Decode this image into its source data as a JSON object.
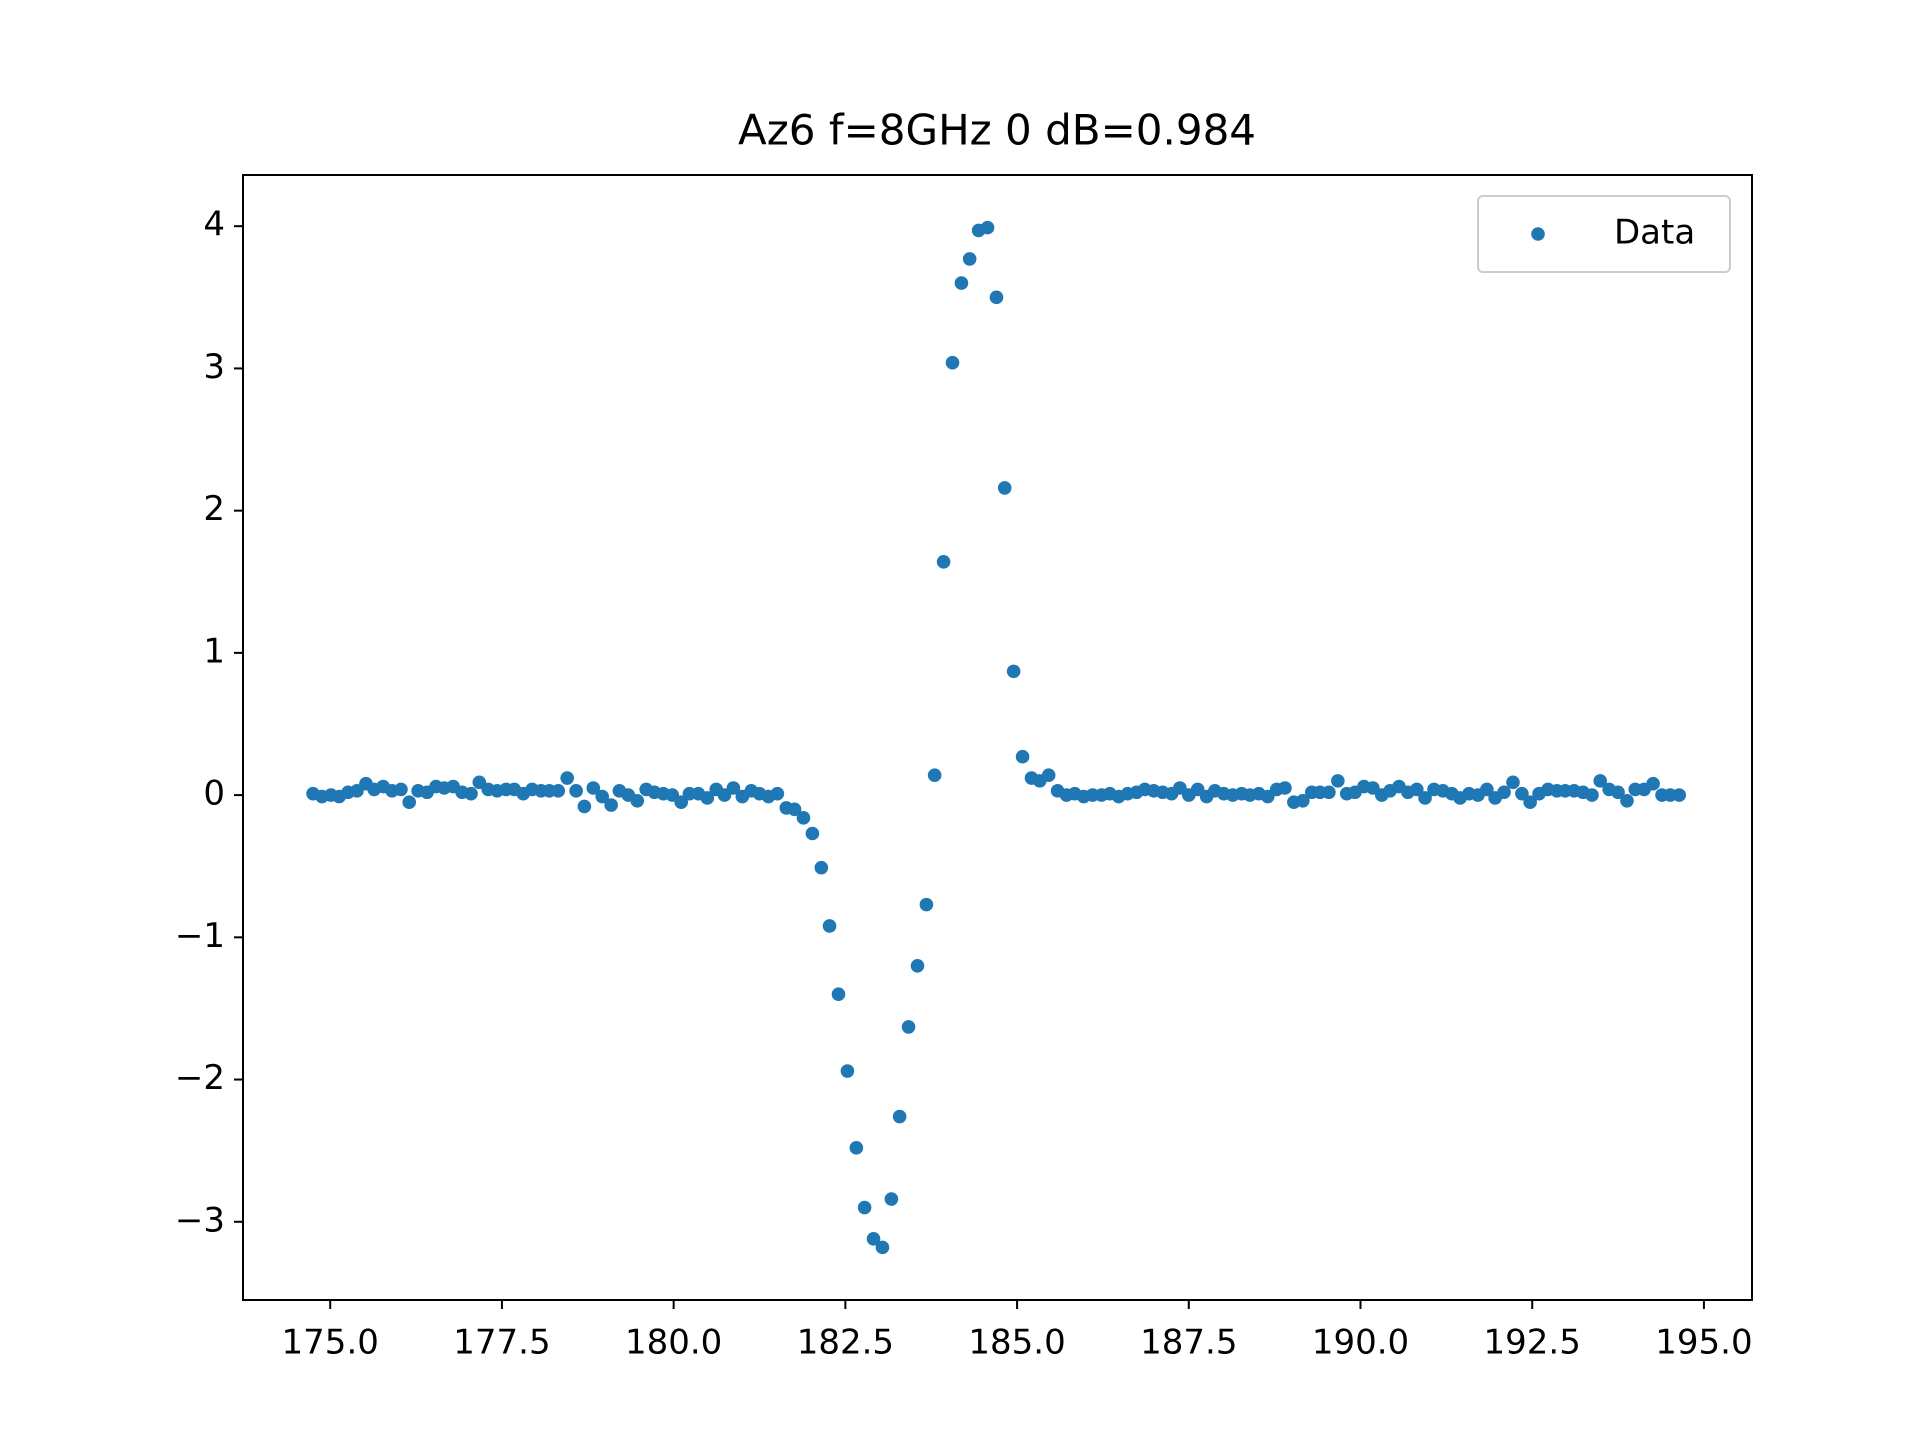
{
  "chart_data": {
    "type": "scatter",
    "title": "Az6 f=8GHz 0 dB=0.984",
    "series": [
      {
        "name": "Data",
        "color": "#1f77b4",
        "x": [
          174.75,
          174.88,
          175.01,
          175.13,
          175.26,
          175.39,
          175.52,
          175.64,
          175.77,
          175.9,
          176.03,
          176.15,
          176.28,
          176.41,
          176.54,
          176.66,
          176.79,
          176.92,
          177.05,
          177.17,
          177.3,
          177.43,
          177.56,
          177.68,
          177.81,
          177.94,
          178.07,
          178.19,
          178.32,
          178.45,
          178.58,
          178.7,
          178.83,
          178.96,
          179.09,
          179.21,
          179.34,
          179.47,
          179.6,
          179.72,
          179.85,
          179.98,
          180.11,
          180.23,
          180.36,
          180.49,
          180.62,
          180.74,
          180.87,
          181.0,
          181.13,
          181.25,
          181.38,
          181.51,
          181.64,
          181.76,
          181.89,
          182.02,
          182.15,
          182.27,
          182.4,
          182.53,
          182.66,
          182.78,
          182.91,
          183.04,
          183.17,
          183.29,
          183.42,
          183.55,
          183.68,
          183.8,
          183.93,
          184.06,
          184.19,
          184.31,
          184.44,
          184.57,
          184.7,
          184.82,
          184.95,
          185.08,
          185.21,
          185.33,
          185.46,
          185.59,
          185.72,
          185.84,
          185.97,
          186.1,
          186.23,
          186.35,
          186.48,
          186.61,
          186.74,
          186.86,
          186.99,
          187.12,
          187.25,
          187.37,
          187.5,
          187.63,
          187.76,
          187.88,
          188.01,
          188.14,
          188.27,
          188.39,
          188.52,
          188.65,
          188.78,
          188.9,
          189.03,
          189.16,
          189.29,
          189.41,
          189.54,
          189.67,
          189.8,
          189.92,
          190.05,
          190.18,
          190.31,
          190.43,
          190.56,
          190.69,
          190.82,
          190.94,
          191.07,
          191.2,
          191.33,
          191.45,
          191.58,
          191.71,
          191.84,
          191.96,
          192.09,
          192.22,
          192.35,
          192.47,
          192.6,
          192.73,
          192.86,
          192.98,
          193.11,
          193.24,
          193.37,
          193.49,
          193.62,
          193.75,
          193.88,
          194.0,
          194.13,
          194.26,
          194.39,
          194.51,
          194.64
        ],
        "values": [
          0.01,
          -0.01,
          0.0,
          -0.01,
          0.02,
          0.03,
          0.08,
          0.04,
          0.06,
          0.03,
          0.04,
          -0.05,
          0.03,
          0.02,
          0.06,
          0.05,
          0.06,
          0.02,
          0.01,
          0.09,
          0.04,
          0.03,
          0.04,
          0.04,
          0.01,
          0.04,
          0.03,
          0.03,
          0.03,
          0.12,
          0.03,
          -0.08,
          0.05,
          -0.01,
          -0.07,
          0.03,
          0.0,
          -0.04,
          0.04,
          0.02,
          0.01,
          0.0,
          -0.05,
          0.01,
          0.01,
          -0.02,
          0.04,
          0.0,
          0.05,
          -0.01,
          0.03,
          0.01,
          -0.01,
          0.01,
          -0.09,
          -0.1,
          -0.16,
          -0.27,
          -0.51,
          -0.92,
          -1.4,
          -1.94,
          -2.48,
          -2.9,
          -3.12,
          -3.18,
          -2.84,
          -2.26,
          -1.63,
          -1.2,
          -0.77,
          0.14,
          1.64,
          3.04,
          3.6,
          3.77,
          3.97,
          3.99,
          3.5,
          2.16,
          0.87,
          0.27,
          0.12,
          0.1,
          0.14,
          0.03,
          0.0,
          0.01,
          -0.01,
          0.0,
          0.0,
          0.01,
          -0.01,
          0.01,
          0.02,
          0.04,
          0.03,
          0.02,
          0.01,
          0.05,
          0.0,
          0.04,
          -0.01,
          0.03,
          0.01,
          0.0,
          0.01,
          0.0,
          0.01,
          -0.01,
          0.04,
          0.05,
          -0.05,
          -0.04,
          0.02,
          0.02,
          0.02,
          0.1,
          0.01,
          0.02,
          0.06,
          0.05,
          0.0,
          0.03,
          0.06,
          0.02,
          0.04,
          -0.02,
          0.04,
          0.03,
          0.01,
          -0.02,
          0.01,
          0.0,
          0.04,
          -0.02,
          0.02,
          0.09,
          0.01,
          -0.05,
          0.01,
          0.04,
          0.03,
          0.03,
          0.03,
          0.02,
          0.0,
          0.1,
          0.04,
          0.02,
          -0.04,
          0.04,
          0.04,
          0.08,
          0.0,
          0.0,
          0.0
        ]
      }
    ],
    "xlim": [
      173.73,
      195.7
    ],
    "xticks": [
      {
        "value": 175,
        "label": "175.0"
      },
      {
        "value": 177.5,
        "label": "177.5"
      },
      {
        "value": 180,
        "label": "180.0"
      },
      {
        "value": 182.5,
        "label": "182.5"
      },
      {
        "value": 185,
        "label": "185.0"
      },
      {
        "value": 187.5,
        "label": "187.5"
      },
      {
        "value": 190,
        "label": "190.0"
      },
      {
        "value": 192.5,
        "label": "192.5"
      },
      {
        "value": 195,
        "label": "195.0"
      }
    ],
    "ylim": [
      -3.55,
      4.36
    ],
    "yticks": [
      {
        "value": -3,
        "label": "−3"
      },
      {
        "value": -2,
        "label": "−2"
      },
      {
        "value": -1,
        "label": "−1"
      },
      0,
      1,
      2,
      3,
      4
    ],
    "legend": "upper right",
    "grid": false
  }
}
